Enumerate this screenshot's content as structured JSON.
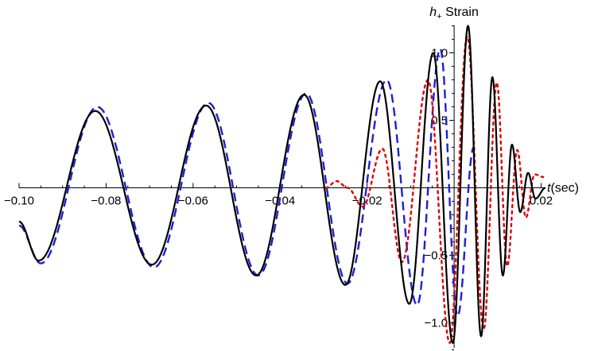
{
  "chart_data": {
    "type": "line",
    "ylabel": "h",
    "ylabel_sub": "+",
    "ylabel_suffix": " Strain",
    "xlabel": "t",
    "xlabel_suffix": "(sec)",
    "xlim": [
      -0.1,
      0.021
    ],
    "ylim": [
      -1.2,
      1.2
    ],
    "x_ticks": [
      -0.1,
      -0.08,
      -0.06,
      -0.04,
      -0.02,
      0.02
    ],
    "x_tick_labels": [
      "−0.10",
      "−0.08",
      "−0.06",
      "−0.04",
      "−0.02",
      "0.02"
    ],
    "y_ticks": [
      -1.0,
      -0.5,
      0.5,
      1.0
    ],
    "y_tick_labels": [
      "−1.0",
      "−0.5",
      "0.5",
      "1.0"
    ],
    "grid": false,
    "legend": "none",
    "series": [
      {
        "style": "solid",
        "color": "#000000",
        "extrema": [
          [
            -0.1,
            -0.25
          ],
          [
            -0.0955,
            -0.54
          ],
          [
            -0.0825,
            0.57
          ],
          [
            -0.0695,
            -0.57
          ],
          [
            -0.057,
            0.61
          ],
          [
            -0.0455,
            -0.65
          ],
          [
            -0.0345,
            0.69
          ],
          [
            -0.025,
            -0.72
          ],
          [
            -0.017,
            0.79
          ],
          [
            -0.0103,
            -0.86
          ],
          [
            -0.0048,
            1.0
          ],
          [
            -0.0003,
            -1.15
          ],
          [
            0.0032,
            1.2
          ],
          [
            0.0062,
            -1.1
          ],
          [
            0.0088,
            0.82
          ],
          [
            0.0112,
            -0.65
          ],
          [
            0.0133,
            0.32
          ],
          [
            0.0152,
            -0.18
          ],
          [
            0.017,
            0.11
          ],
          [
            0.0187,
            -0.08
          ],
          [
            0.021,
            0.0
          ]
        ]
      },
      {
        "style": "dashed",
        "color": "#1f1fd6",
        "extrema": [
          [
            -0.1,
            -0.28
          ],
          [
            -0.095,
            -0.56
          ],
          [
            -0.082,
            0.6
          ],
          [
            -0.069,
            -0.59
          ],
          [
            -0.0565,
            0.63
          ],
          [
            -0.045,
            -0.65
          ],
          [
            -0.034,
            0.7
          ],
          [
            -0.0245,
            -0.71
          ],
          [
            -0.0155,
            0.8
          ],
          [
            -0.0085,
            -0.87
          ],
          [
            -0.0032,
            1.03
          ],
          [
            0.0008,
            -0.95
          ],
          [
            0.0045,
            0.3
          ]
        ]
      },
      {
        "style": "dotted",
        "color": "#e00000",
        "extrema": [
          [
            -0.0295,
            0.0
          ],
          [
            -0.027,
            0.05
          ],
          [
            -0.0245,
            0.0
          ],
          [
            -0.021,
            -0.14
          ],
          [
            -0.0165,
            0.29
          ],
          [
            -0.012,
            -0.55
          ],
          [
            -0.006,
            0.8
          ],
          [
            -0.001,
            -1.15
          ],
          [
            0.003,
            1.12
          ],
          [
            0.0068,
            -1.05
          ],
          [
            0.0098,
            0.78
          ],
          [
            0.0122,
            -0.58
          ],
          [
            0.0145,
            0.28
          ],
          [
            0.0165,
            -0.22
          ],
          [
            0.0185,
            0.1
          ],
          [
            0.0205,
            0.08
          ]
        ]
      }
    ]
  }
}
